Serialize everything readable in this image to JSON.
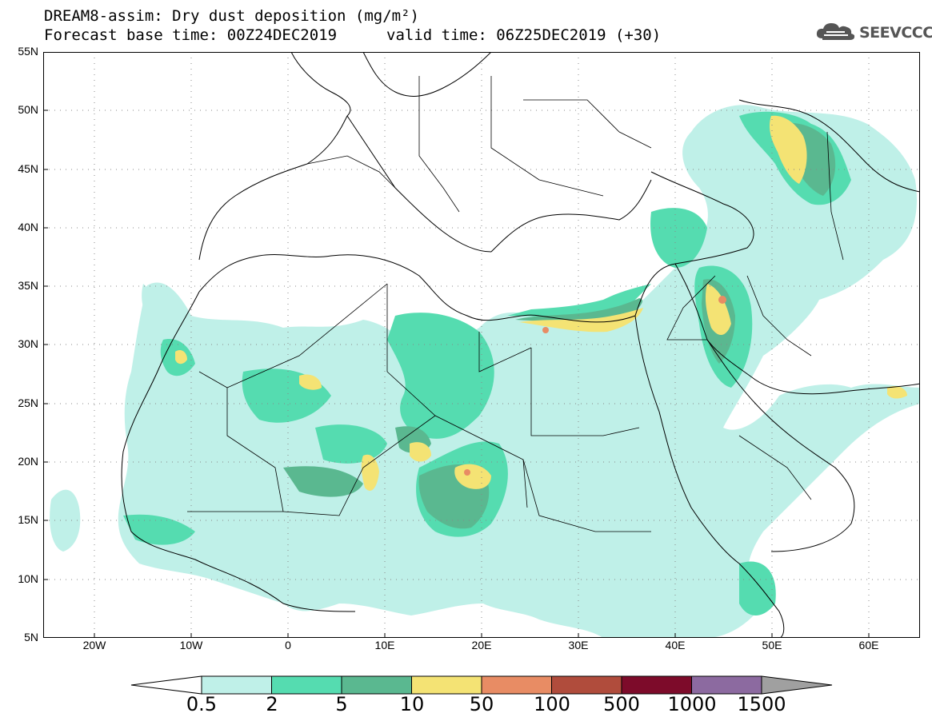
{
  "header": {
    "title": "DREAM8-assim: Dry dust deposition (mg/m²)",
    "base_time": "Forecast base time: 00Z24DEC2019",
    "valid_time": "valid time: 06Z25DEC2019 (+30)"
  },
  "logo": {
    "text": "SEEVCCC",
    "icon": "cloud-icon"
  },
  "map": {
    "lat_labels": [
      "55N",
      "50N",
      "45N",
      "40N",
      "35N",
      "30N",
      "25N",
      "20N",
      "15N",
      "10N",
      "5N"
    ],
    "lon_labels": [
      "20W",
      "10W",
      "0",
      "10E",
      "20E",
      "30E",
      "40E",
      "50E",
      "60E"
    ],
    "lon_range": [
      -25,
      65
    ],
    "lat_range": [
      5,
      55
    ],
    "grid": "dotted"
  },
  "colorbar": {
    "thresholds": [
      "0.5",
      "2",
      "5",
      "10",
      "50",
      "100",
      "500",
      "1000",
      "1500"
    ],
    "colors": [
      "#ffffff",
      "#bff0e8",
      "#55dcb0",
      "#5ab890",
      "#f4e374",
      "#e88c64",
      "#b04c3c",
      "#7d0b2a",
      "#8c6aa0",
      "#a0a0a0"
    ]
  }
}
